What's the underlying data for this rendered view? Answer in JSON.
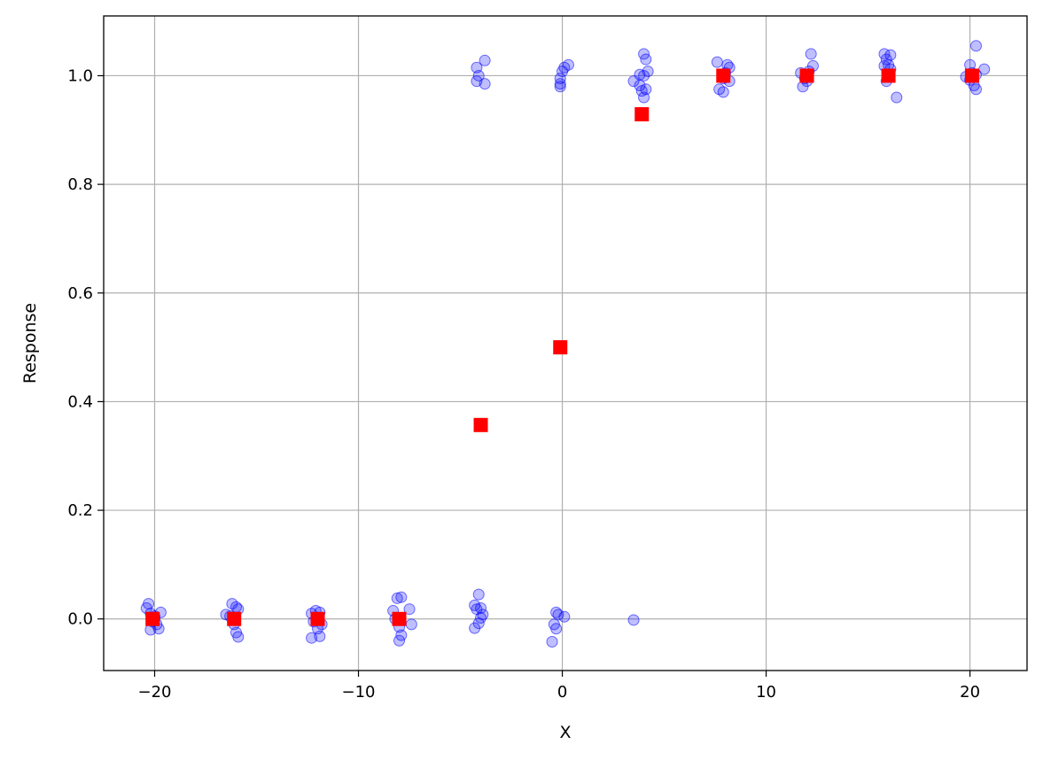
{
  "chart_data": {
    "type": "scatter",
    "xlabel": "X",
    "ylabel": "Response",
    "xlim": [
      -22.5,
      22.8
    ],
    "ylim": [
      -0.095,
      1.11
    ],
    "xticks": [
      -20,
      -10,
      0,
      10,
      20
    ],
    "xtick_labels": [
      "−20",
      "−10",
      "0",
      "10",
      "20"
    ],
    "yticks": [
      0.0,
      0.2,
      0.4,
      0.6,
      0.8,
      1.0
    ],
    "ytick_labels": [
      "0.0",
      "0.2",
      "0.4",
      "0.6",
      "0.8",
      "1.0"
    ],
    "grid": true,
    "colors": {
      "points": "#0000ff",
      "means": "#ff0000",
      "grid": "#b0b0b0",
      "axes": "#000000"
    },
    "series": [
      {
        "marker": "circle",
        "opacity": 0.25,
        "points": [
          [
            -20.4,
            0.02
          ],
          [
            -20.3,
            0.028
          ],
          [
            -20.2,
            0.01
          ],
          [
            -20.1,
            -0.005
          ],
          [
            -20.0,
            0.005
          ],
          [
            -19.9,
            -0.01
          ],
          [
            -20.2,
            -0.02
          ],
          [
            -19.8,
            -0.018
          ],
          [
            -19.7,
            0.012
          ],
          [
            -20.0,
            0.0
          ],
          [
            -16.5,
            0.008
          ],
          [
            -16.2,
            0.028
          ],
          [
            -16.0,
            0.022
          ],
          [
            -15.9,
            0.018
          ],
          [
            -16.1,
            -0.01
          ],
          [
            -16.0,
            -0.025
          ],
          [
            -15.9,
            -0.033
          ],
          [
            -16.3,
            0.005
          ],
          [
            -16.1,
            0.0
          ],
          [
            -12.3,
            0.01
          ],
          [
            -12.1,
            0.015
          ],
          [
            -11.9,
            0.012
          ],
          [
            -12.2,
            -0.005
          ],
          [
            -11.8,
            -0.01
          ],
          [
            -12.0,
            -0.018
          ],
          [
            -12.3,
            -0.035
          ],
          [
            -11.9,
            -0.032
          ],
          [
            -12.0,
            0.0
          ],
          [
            -8.3,
            0.015
          ],
          [
            -8.1,
            0.038
          ],
          [
            -7.9,
            0.04
          ],
          [
            -7.5,
            0.018
          ],
          [
            -8.2,
            0.0
          ],
          [
            -8.0,
            -0.015
          ],
          [
            -7.9,
            -0.03
          ],
          [
            -8.0,
            -0.04
          ],
          [
            -7.4,
            -0.01
          ],
          [
            -4.1,
            0.045
          ],
          [
            -4.3,
            0.025
          ],
          [
            -4.2,
            0.018
          ],
          [
            -4.0,
            0.02
          ],
          [
            -3.9,
            0.008
          ],
          [
            -4.0,
            0.002
          ],
          [
            -4.1,
            -0.008
          ],
          [
            -4.3,
            -0.017
          ],
          [
            -0.3,
            0.012
          ],
          [
            -0.2,
            0.008
          ],
          [
            0.1,
            0.004
          ],
          [
            -0.4,
            -0.01
          ],
          [
            -0.3,
            -0.018
          ],
          [
            -0.5,
            -0.042
          ],
          [
            3.5,
            -0.002
          ],
          [
            -4.2,
            1.015
          ],
          [
            -3.8,
            1.028
          ],
          [
            -4.1,
            1.0
          ],
          [
            -4.2,
            0.99
          ],
          [
            -3.8,
            0.985
          ],
          [
            0.3,
            1.02
          ],
          [
            0.1,
            1.015
          ],
          [
            0.0,
            1.008
          ],
          [
            -0.1,
            0.995
          ],
          [
            -0.1,
            0.985
          ],
          [
            -0.1,
            0.98
          ],
          [
            4.0,
            1.04
          ],
          [
            4.1,
            1.03
          ],
          [
            4.2,
            1.008
          ],
          [
            3.8,
            1.002
          ],
          [
            4.0,
            1.0
          ],
          [
            3.5,
            0.99
          ],
          [
            3.8,
            0.982
          ],
          [
            4.1,
            0.975
          ],
          [
            3.9,
            0.972
          ],
          [
            4.0,
            0.96
          ],
          [
            7.6,
            1.025
          ],
          [
            8.1,
            1.02
          ],
          [
            8.2,
            1.015
          ],
          [
            8.0,
            1.005
          ],
          [
            7.9,
            0.995
          ],
          [
            8.2,
            0.99
          ],
          [
            7.7,
            0.975
          ],
          [
            7.9,
            0.97
          ],
          [
            11.7,
            1.005
          ],
          [
            12.2,
            1.04
          ],
          [
            12.3,
            1.018
          ],
          [
            12.1,
            1.008
          ],
          [
            11.9,
            0.995
          ],
          [
            12.0,
            0.99
          ],
          [
            11.8,
            0.98
          ],
          [
            15.8,
            1.04
          ],
          [
            16.1,
            1.038
          ],
          [
            15.9,
            1.03
          ],
          [
            16.0,
            1.02
          ],
          [
            15.8,
            1.018
          ],
          [
            16.1,
            1.012
          ],
          [
            16.0,
            1.0
          ],
          [
            15.9,
            0.99
          ],
          [
            16.4,
            0.96
          ],
          [
            20.3,
            1.055
          ],
          [
            20.0,
            1.02
          ],
          [
            20.7,
            1.012
          ],
          [
            20.1,
            1.005
          ],
          [
            20.3,
            1.002
          ],
          [
            19.8,
            0.998
          ],
          [
            20.0,
            0.992
          ],
          [
            20.2,
            0.982
          ],
          [
            20.3,
            0.975
          ]
        ]
      },
      {
        "marker": "square",
        "points": [
          [
            -20.1,
            0.0
          ],
          [
            -16.1,
            0.0
          ],
          [
            -12.0,
            0.0
          ],
          [
            -8.0,
            0.0
          ],
          [
            -4.0,
            0.357
          ],
          [
            -0.1,
            0.5
          ],
          [
            3.9,
            0.929
          ],
          [
            7.9,
            1.0
          ],
          [
            12.0,
            1.0
          ],
          [
            16.0,
            1.0
          ],
          [
            20.1,
            1.0
          ]
        ]
      }
    ]
  }
}
